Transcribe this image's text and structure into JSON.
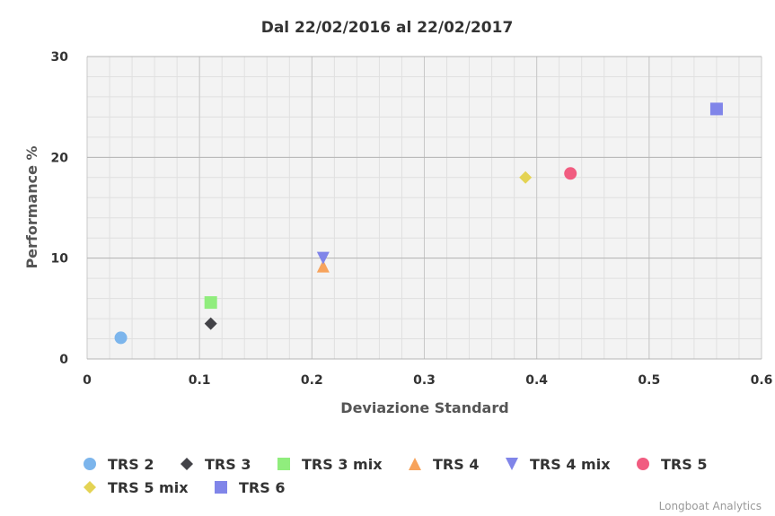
{
  "chart_data": {
    "type": "scatter",
    "title": "Dal 22/02/2016 al 22/02/2017",
    "xlabel": "Deviazione Standard",
    "ylabel": "Performance %",
    "xlim": [
      0,
      0.6
    ],
    "ylim": [
      0,
      30
    ],
    "xticks": [
      "0",
      "0.1",
      "0.2",
      "0.3",
      "0.4",
      "0.5",
      "0.6"
    ],
    "yticks": [
      "0",
      "10",
      "20",
      "30"
    ],
    "grid": true,
    "legend_position": "bottom-left",
    "series": [
      {
        "name": "TRS 2",
        "marker": "circle",
        "color": "#7cb5ec",
        "points": [
          [
            0.03,
            2.1
          ]
        ]
      },
      {
        "name": "TRS 3",
        "marker": "diamond",
        "color": "#434348",
        "points": [
          [
            0.11,
            3.5
          ]
        ]
      },
      {
        "name": "TRS 3 mix",
        "marker": "square",
        "color": "#90ed7d",
        "points": [
          [
            0.11,
            5.6
          ]
        ]
      },
      {
        "name": "TRS 4",
        "marker": "triangle",
        "color": "#f7a35c",
        "points": [
          [
            0.21,
            9.2
          ]
        ]
      },
      {
        "name": "TRS 4 mix",
        "marker": "triangle-down",
        "color": "#8085e9",
        "points": [
          [
            0.21,
            10.0
          ]
        ]
      },
      {
        "name": "TRS 5",
        "marker": "circle",
        "color": "#f15c80",
        "points": [
          [
            0.43,
            18.4
          ]
        ]
      },
      {
        "name": "TRS 5 mix",
        "marker": "diamond",
        "color": "#e4d354",
        "points": [
          [
            0.39,
            18.0
          ]
        ]
      },
      {
        "name": "TRS 6",
        "marker": "square",
        "color": "#8085e9",
        "points": [
          [
            0.56,
            24.8
          ]
        ]
      }
    ]
  },
  "credits": "Longboat Analytics"
}
